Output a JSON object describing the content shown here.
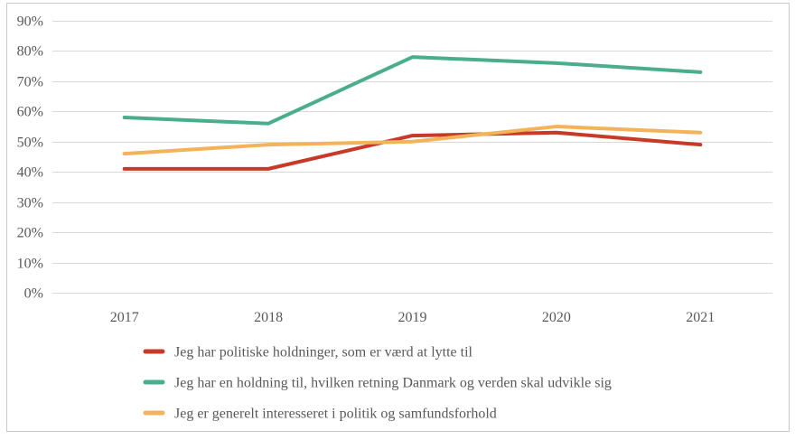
{
  "figure": {
    "background": "#FFFFFF",
    "border_color": "#C9C9C9",
    "gridline_color": "#D9D9D9",
    "text_color": "#595959"
  },
  "chart_data": {
    "type": "line",
    "title": "",
    "xlabel": "",
    "ylabel": "",
    "categories": [
      "2017",
      "2018",
      "2019",
      "2020",
      "2021"
    ],
    "series": [
      {
        "name": "Jeg har politiske holdninger, som er værd at lytte til",
        "color": "#C63A27",
        "values": [
          41,
          41,
          52,
          53,
          49
        ]
      },
      {
        "name": "Jeg har en holdning til, hvilken retning Danmark og verden skal udvikle sig",
        "color": "#4AAE8D",
        "values": [
          58,
          56,
          78,
          76,
          73
        ]
      },
      {
        "name": "Jeg er generelt interesseret i politik og samfundsforhold",
        "color": "#F3B35A",
        "values": [
          46,
          49,
          50,
          55,
          53
        ]
      }
    ],
    "ylim": [
      0,
      90
    ],
    "yticks": [
      0,
      10,
      20,
      30,
      40,
      50,
      60,
      70,
      80,
      90
    ],
    "ytick_labels": [
      "0%",
      "10%",
      "20%",
      "30%",
      "40%",
      "50%",
      "60%",
      "70%",
      "80%",
      "90%"
    ],
    "grid": true,
    "legend_position": "bottom-left"
  }
}
